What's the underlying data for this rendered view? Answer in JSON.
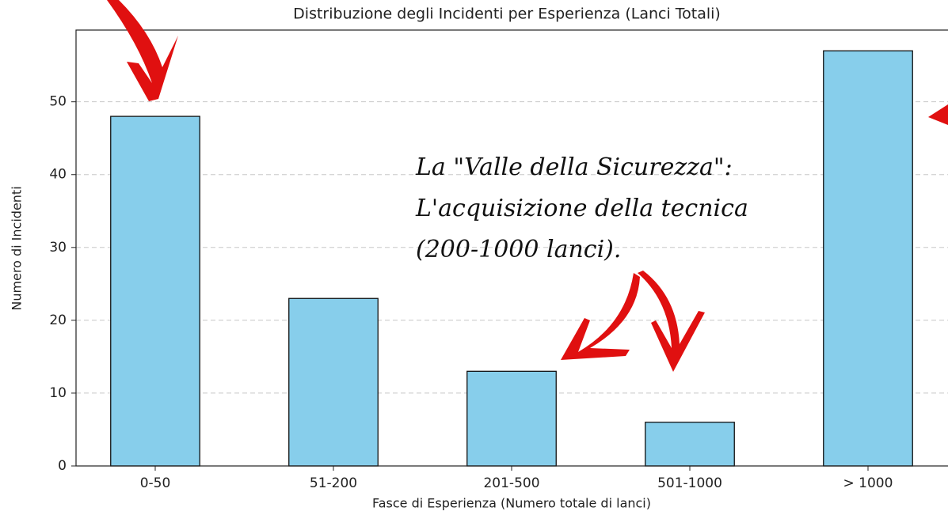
{
  "chart_data": {
    "type": "bar",
    "title": "Distribuzione degli Incidenti per Esperienza (Lanci Totali)",
    "x_label": "Fasce di Esperienza (Numero totale di lanci)",
    "y_label": "Numero di Incidenti",
    "categories": [
      "0-50",
      "51-200",
      "201-500",
      "501-1000",
      "> 1000"
    ],
    "values": [
      48,
      23,
      13,
      6,
      57
    ],
    "color": "#87ceeb",
    "ylim": [
      0,
      59.85
    ],
    "yticks": [
      0,
      10,
      20,
      30,
      40,
      50
    ],
    "grid": true,
    "annotation": [
      "La \"Valle della Sicurezza\":",
      "L'acquisizione della tecnica",
      "(200-1000 lanci)."
    ]
  }
}
